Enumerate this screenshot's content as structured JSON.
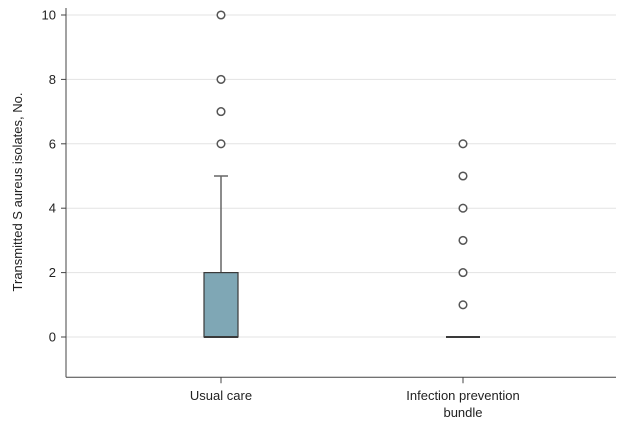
{
  "chart_data": {
    "type": "box",
    "title": "",
    "xlabel": "",
    "ylabel": "Transmitted S aureus isolates, No.",
    "ylim": [
      -1.25,
      10
    ],
    "yticks": [
      0,
      2,
      4,
      6,
      8,
      10
    ],
    "grid": true,
    "categories": [
      {
        "label_lines": [
          "Usual care"
        ]
      },
      {
        "label_lines": [
          "Infection prevention",
          "bundle"
        ]
      }
    ],
    "boxes": [
      {
        "min": 0,
        "q1": 0,
        "median": 0,
        "q3": 2,
        "max": 5,
        "outliers": [
          6,
          7,
          8,
          10
        ]
      },
      {
        "min": 0,
        "q1": 0,
        "median": 0,
        "q3": 0,
        "max": 0,
        "outliers": [
          1,
          2,
          3,
          4,
          5,
          6
        ]
      }
    ],
    "colors": {
      "box_fill": "#7fa7b5",
      "box_stroke": "#3a3a3a"
    }
  }
}
